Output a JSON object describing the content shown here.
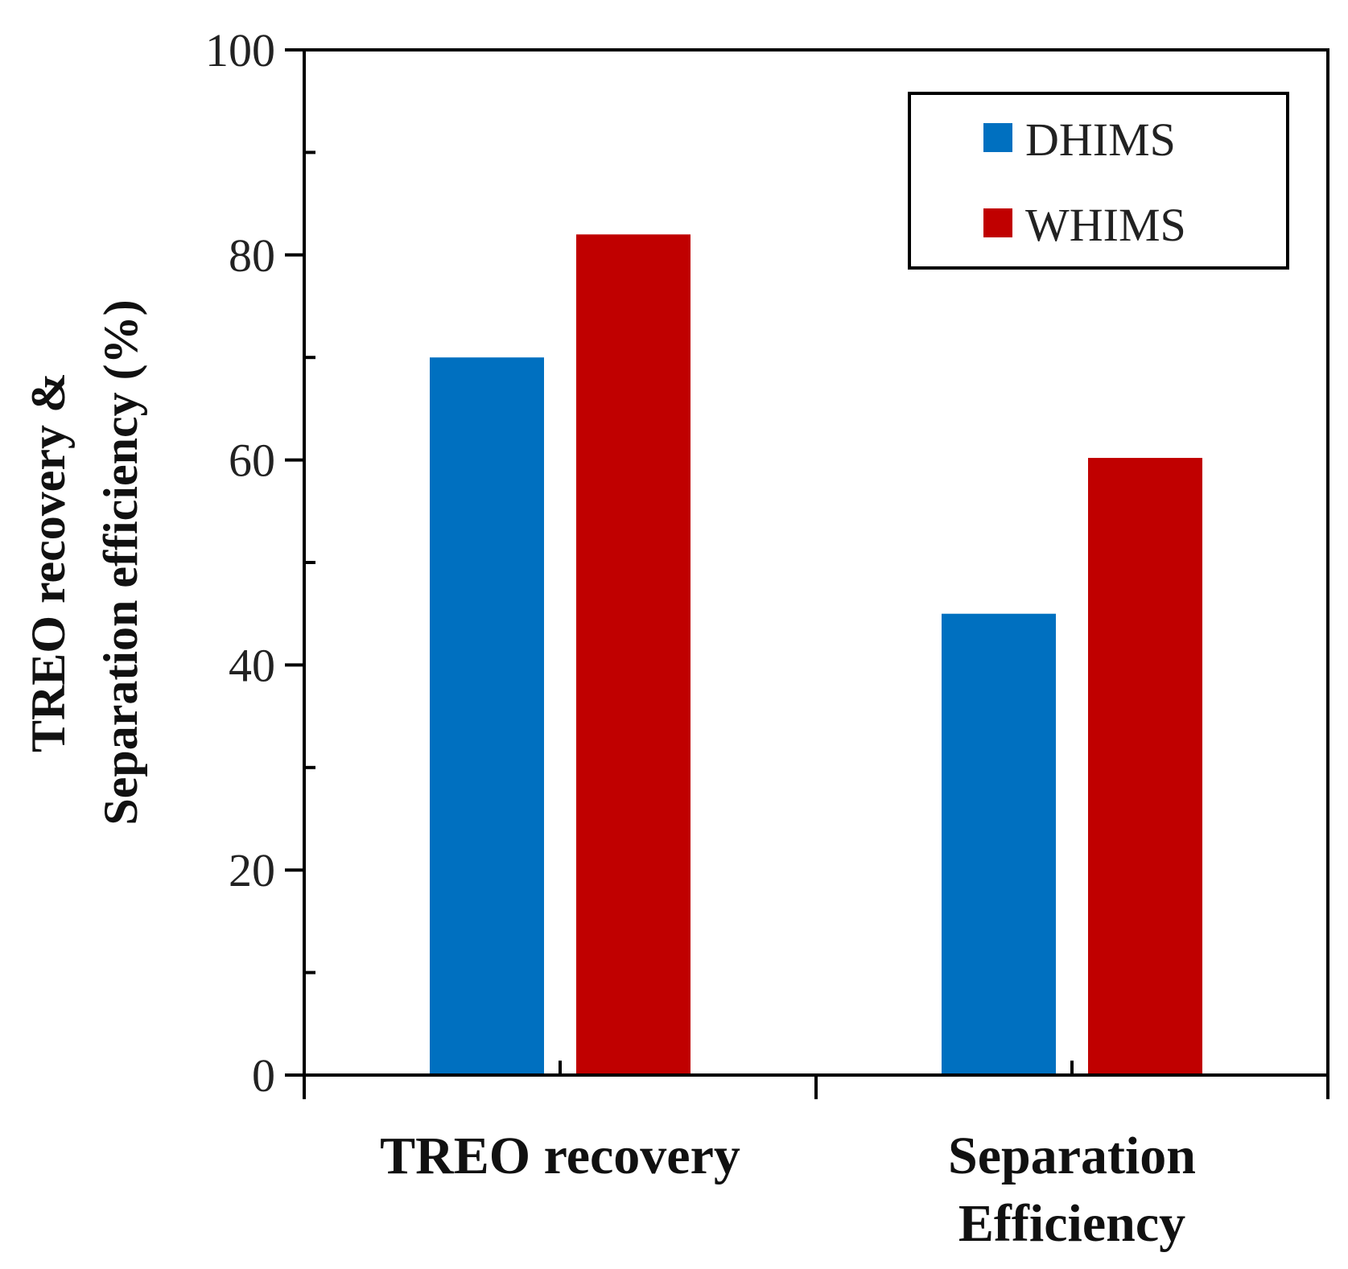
{
  "chart_data": {
    "type": "bar",
    "title": "",
    "xlabel": "",
    "ylabel_lines": [
      "TREO recovery &",
      "Separation efficiency (%)"
    ],
    "categories": [
      {
        "lines": [
          "TREO recovery"
        ]
      },
      {
        "lines": [
          "Separation",
          "Efficiency"
        ]
      }
    ],
    "series": [
      {
        "name": "DHIMS",
        "color": "#0070C0",
        "values": [
          70,
          45
        ]
      },
      {
        "name": "WHIMS",
        "color": "#C00000",
        "values": [
          82,
          60.2
        ]
      }
    ],
    "ylim": [
      0,
      100
    ],
    "y_major_ticks": [
      0,
      20,
      40,
      60,
      80,
      100
    ],
    "y_minor_ticks": [
      10,
      30,
      50,
      70,
      90
    ],
    "grid": false,
    "legend_position": "top-right"
  }
}
